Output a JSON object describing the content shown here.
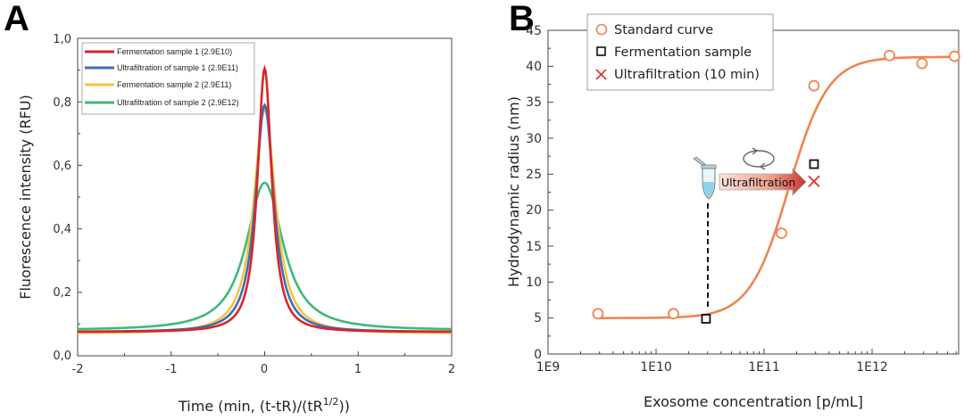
{
  "chart_data": [
    {
      "panel": "A",
      "type": "line",
      "xlabel": "Time (min, (t-tR)/(tR",
      "xlabel_sup": "1/2",
      "xlabel_end": "))",
      "ylabel": "Fluorescence intensity (RFU)",
      "xlim": [
        -2,
        2
      ],
      "ylim": [
        0,
        1
      ],
      "x_ticks": [
        -2,
        -1,
        0,
        1,
        2
      ],
      "x_tick_labels": [
        "-2",
        "-1",
        "0",
        "1",
        "2"
      ],
      "y_ticks": [
        0,
        0.2,
        0.4,
        0.6,
        0.8,
        1.0
      ],
      "y_tick_labels": [
        "0,0",
        "0,2",
        "0,4",
        "0,6",
        "0,8",
        "1,0"
      ],
      "legend_position": "top-left",
      "series": [
        {
          "name": "Fermentation sample 1 (2.9E10)",
          "color": "#d8262a",
          "peak": 0.905,
          "baseline": 0.075,
          "width": 0.1
        },
        {
          "name": "Ultrafiltration of sample 1 (2.9E11)",
          "color": "#3d6fb0",
          "peak": 0.79,
          "baseline": 0.075,
          "width": 0.13
        },
        {
          "name": "Fermentation sample 2 (2.9E11)",
          "color": "#f5c242",
          "peak": 0.775,
          "baseline": 0.07,
          "width": 0.155
        },
        {
          "name": "Ultrafiltration of sample 2 (2.9E12)",
          "color": "#3fb87a",
          "peak": 0.545,
          "baseline": 0.08,
          "width": 0.26
        }
      ]
    },
    {
      "panel": "B",
      "type": "scatter",
      "xlabel": "Exosome concentration [p/mL]",
      "ylabel": "Hydrodynamic radius (nm)",
      "xscale": "log",
      "xlim": [
        1000000000.0,
        6000000000000.0
      ],
      "ylim": [
        0,
        45
      ],
      "x_ticks": [
        1000000000.0,
        10000000000.0,
        100000000000.0,
        1000000000000.0
      ],
      "x_tick_labels": [
        "1E9",
        "1E10",
        "1E11",
        "1E12"
      ],
      "y_ticks": [
        0,
        5,
        10,
        15,
        20,
        25,
        30,
        35,
        40,
        45
      ],
      "y_tick_labels": [
        "0",
        "5",
        "10",
        "15",
        "20",
        "25",
        "30",
        "35",
        "40",
        "45"
      ],
      "legend_position": "top-left",
      "series": [
        {
          "name": "Standard curve",
          "marker": "circle",
          "color": "#f0844f",
          "x": [
            2900000000.0,
            14500000000.0,
            145000000000.0,
            290000000000.0,
            1450000000000.0,
            2900000000000.0,
            5800000000000.0
          ],
          "y": [
            5.6,
            5.6,
            16.8,
            37.3,
            41.5,
            40.4,
            41.4
          ]
        },
        {
          "name": "Fermentation sample",
          "marker": "square",
          "color": "#111111",
          "x": [
            29000000000.0,
            290000000000.0
          ],
          "y": [
            4.9,
            26.4
          ]
        },
        {
          "name": "Ultrafiltration (10 min)",
          "marker": "x",
          "color": "#e0302e",
          "x": [
            290000000000.0
          ],
          "y": [
            24.0
          ]
        }
      ],
      "fit_curve": {
        "color": "#f0844f",
        "bottom": 5.0,
        "top": 41.3,
        "x50": 170000000000.0,
        "hill": 2.4
      },
      "annotation": {
        "label": "Ultrafiltration"
      }
    }
  ]
}
